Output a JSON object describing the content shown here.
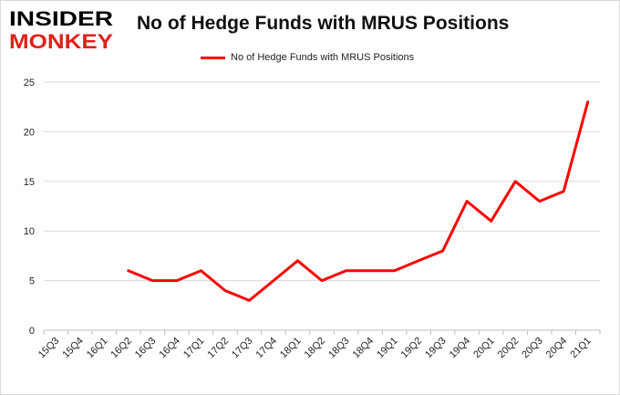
{
  "logo": {
    "line1": "INSIDER",
    "line2": "MONKEY",
    "colors": {
      "primary": "#000000",
      "secondary": "#e0201b"
    }
  },
  "chart_data": {
    "type": "line",
    "title": "No of Hedge Funds with MRUS Positions",
    "xlabel": "",
    "ylabel": "",
    "categories": [
      "15Q3",
      "15Q4",
      "16Q1",
      "16Q2",
      "16Q3",
      "16Q4",
      "17Q1",
      "17Q2",
      "17Q3",
      "17Q4",
      "18Q1",
      "18Q2",
      "18Q3",
      "18Q4",
      "19Q1",
      "19Q2",
      "19Q3",
      "19Q4",
      "20Q1",
      "20Q2",
      "20Q3",
      "20Q4",
      "21Q1"
    ],
    "series": [
      {
        "name": "No of Hedge Funds with MRUS Positions",
        "color": "#ff0000",
        "values": [
          null,
          null,
          null,
          6,
          5,
          5,
          6,
          4,
          3,
          5,
          7,
          5,
          6,
          6,
          6,
          7,
          8,
          13,
          11,
          15,
          13,
          14,
          23
        ]
      }
    ],
    "ylim": [
      0,
      25
    ],
    "yticks": [
      0,
      5,
      10,
      15,
      20,
      25
    ],
    "grid": true,
    "legend_position": "top-center"
  }
}
